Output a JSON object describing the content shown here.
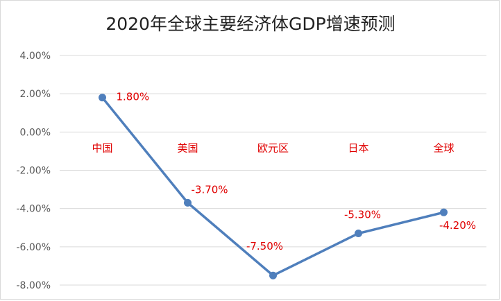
{
  "chart_data": {
    "type": "line",
    "title": "2020年全球主要经济体GDP增速预测",
    "categories": [
      "中国",
      "美国",
      "欧元区",
      "日本",
      "全球"
    ],
    "series": [
      {
        "values": [
          1.8,
          -3.7,
          -7.5,
          -5.3,
          -4.2
        ],
        "data_labels": [
          "1.80%",
          "-3.70%",
          "-7.50%",
          "-5.30%",
          "-4.20%"
        ]
      }
    ],
    "ylim": [
      -8,
      4
    ],
    "yticks": [
      4,
      2,
      0,
      -2,
      -4,
      -6,
      -8
    ],
    "ytick_labels": [
      "4.00%",
      "2.00%",
      "0.00%",
      "-2.00%",
      "-4.00%",
      "-6.00%",
      "-8.00%"
    ],
    "gridlines": true,
    "legend": "none",
    "xlabel": "",
    "ylabel": "",
    "colors": {
      "line": "#4f7fbc",
      "labels": "#e00000",
      "grid": "#d9d9d9",
      "axis_text": "#595959"
    }
  }
}
